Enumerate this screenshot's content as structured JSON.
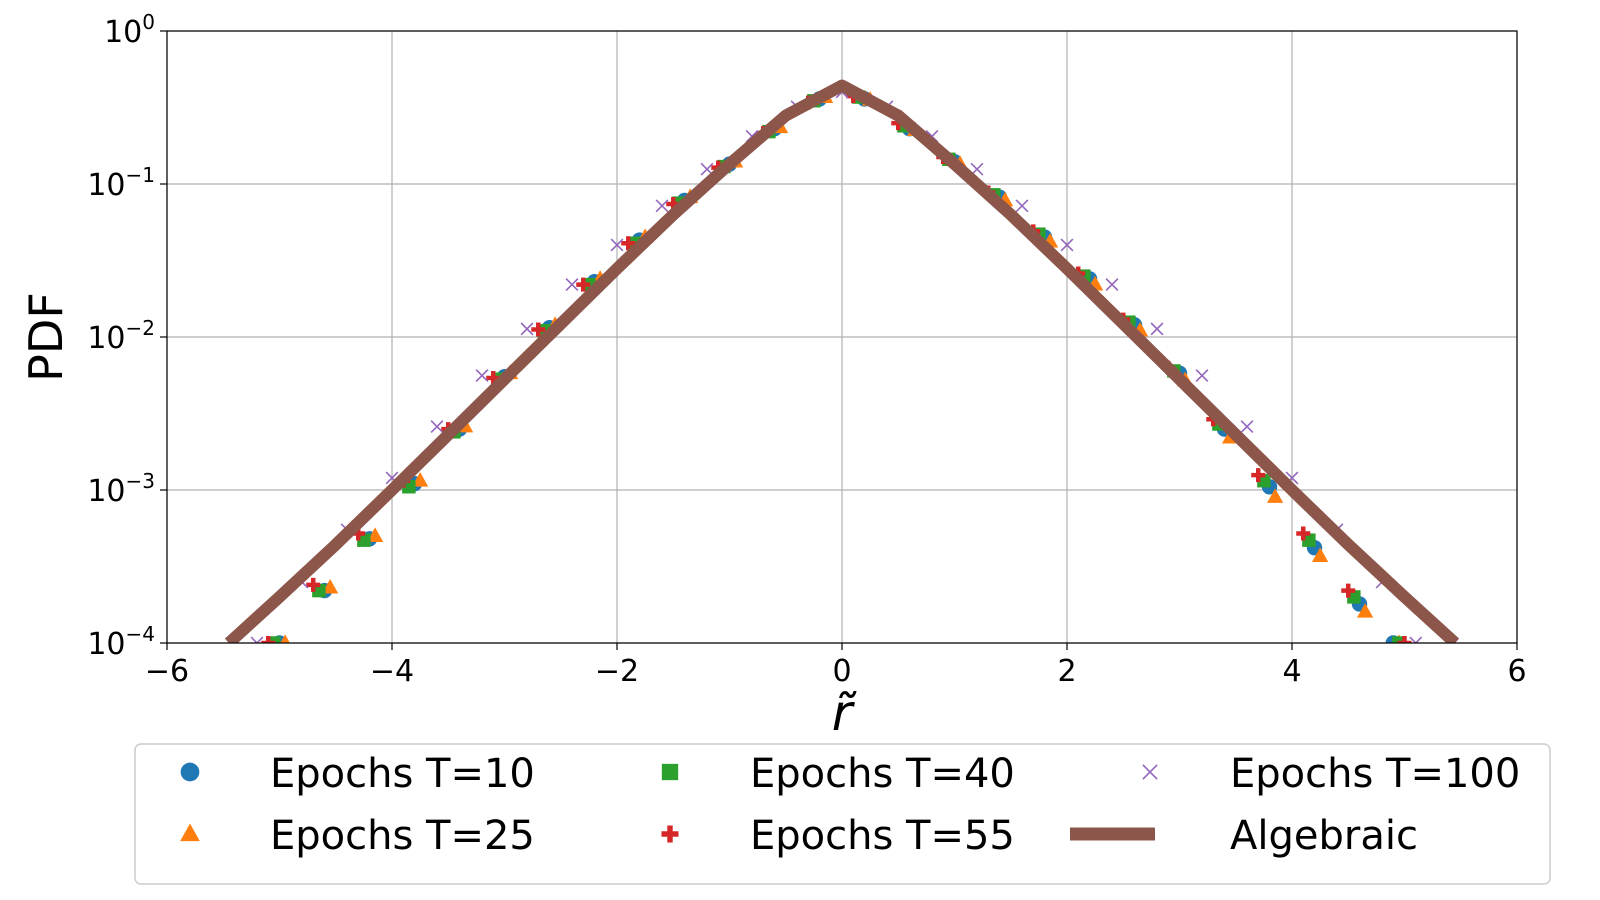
{
  "chart_data": {
    "type": "scatter",
    "xlabel": "r̃",
    "ylabel": "PDF",
    "xlim": [
      -6,
      6
    ],
    "ylim": [
      0.0001,
      1
    ],
    "yscale": "log",
    "grid": true,
    "legend_position": "below plot",
    "legend_columns": 3,
    "x_ticks": [
      {
        "value": -6,
        "label": "−6"
      },
      {
        "value": -4,
        "label": "−4"
      },
      {
        "value": -2,
        "label": "−2"
      },
      {
        "value": 0,
        "label": "0"
      },
      {
        "value": 2,
        "label": "2"
      },
      {
        "value": 4,
        "label": "4"
      },
      {
        "value": 6,
        "label": "6"
      }
    ],
    "y_ticks": [
      {
        "value": 1,
        "base": "10",
        "exp": "0"
      },
      {
        "value": 0.1,
        "base": "10",
        "exp": "−1"
      },
      {
        "value": 0.01,
        "base": "10",
        "exp": "−2"
      },
      {
        "value": 0.001,
        "base": "10",
        "exp": "−3"
      },
      {
        "value": 0.0001,
        "base": "10",
        "exp": "−4"
      }
    ],
    "series": [
      {
        "name": "Epochs T=10",
        "marker": "circle",
        "color": "#1f77b4",
        "points": [
          [
            -5.0,
            0.0001
          ],
          [
            -4.6,
            0.00022
          ],
          [
            -4.2,
            0.00048
          ],
          [
            -3.8,
            0.0011
          ],
          [
            -3.4,
            0.0025
          ],
          [
            -3.0,
            0.0055
          ],
          [
            -2.6,
            0.0115
          ],
          [
            -2.2,
            0.023
          ],
          [
            -1.8,
            0.043
          ],
          [
            -1.4,
            0.078
          ],
          [
            -1.0,
            0.135
          ],
          [
            -0.6,
            0.23
          ],
          [
            -0.2,
            0.36
          ],
          [
            0.2,
            0.36
          ],
          [
            0.6,
            0.23
          ],
          [
            1.0,
            0.14
          ],
          [
            1.4,
            0.082
          ],
          [
            1.8,
            0.045
          ],
          [
            2.2,
            0.024
          ],
          [
            2.6,
            0.012
          ],
          [
            3.0,
            0.0058
          ],
          [
            3.4,
            0.0025
          ],
          [
            3.8,
            0.00105
          ],
          [
            4.2,
            0.00042
          ],
          [
            4.6,
            0.00018
          ],
          [
            4.9,
            0.0001
          ]
        ]
      },
      {
        "name": "Epochs T=25",
        "marker": "triangle",
        "color": "#ff7f0e",
        "points": [
          [
            -4.95,
            0.0001
          ],
          [
            -4.55,
            0.00023
          ],
          [
            -4.15,
            0.0005
          ],
          [
            -3.75,
            0.00115
          ],
          [
            -3.35,
            0.0026
          ],
          [
            -2.95,
            0.0058
          ],
          [
            -2.55,
            0.012
          ],
          [
            -2.15,
            0.024
          ],
          [
            -1.75,
            0.045
          ],
          [
            -1.35,
            0.082
          ],
          [
            -0.95,
            0.14
          ],
          [
            -0.55,
            0.235
          ],
          [
            -0.15,
            0.37
          ],
          [
            0.25,
            0.355
          ],
          [
            0.65,
            0.225
          ],
          [
            1.05,
            0.135
          ],
          [
            1.45,
            0.078
          ],
          [
            1.85,
            0.042
          ],
          [
            2.25,
            0.022
          ],
          [
            2.65,
            0.011
          ],
          [
            3.05,
            0.0052
          ],
          [
            3.45,
            0.0022
          ],
          [
            3.85,
            0.0009
          ],
          [
            4.25,
            0.00037
          ],
          [
            4.65,
            0.00016
          ],
          [
            4.95,
            0.0001
          ]
        ]
      },
      {
        "name": "Epochs T=40",
        "marker": "square",
        "color": "#2ca02c",
        "points": [
          [
            -5.05,
            0.0001
          ],
          [
            -4.65,
            0.00022
          ],
          [
            -4.25,
            0.00047
          ],
          [
            -3.85,
            0.00105
          ],
          [
            -3.45,
            0.0024
          ],
          [
            -3.05,
            0.0053
          ],
          [
            -2.65,
            0.011
          ],
          [
            -2.25,
            0.022
          ],
          [
            -1.85,
            0.041
          ],
          [
            -1.45,
            0.075
          ],
          [
            -1.05,
            0.13
          ],
          [
            -0.65,
            0.22
          ],
          [
            -0.25,
            0.35
          ],
          [
            0.15,
            0.37
          ],
          [
            0.55,
            0.24
          ],
          [
            0.95,
            0.145
          ],
          [
            1.35,
            0.085
          ],
          [
            1.75,
            0.047
          ],
          [
            2.15,
            0.025
          ],
          [
            2.55,
            0.0125
          ],
          [
            2.95,
            0.006
          ],
          [
            3.35,
            0.0027
          ],
          [
            3.75,
            0.00115
          ],
          [
            4.15,
            0.00047
          ],
          [
            4.55,
            0.0002
          ],
          [
            4.95,
            0.0001
          ]
        ]
      },
      {
        "name": "Epochs T=55",
        "marker": "plus",
        "color": "#d62728",
        "points": [
          [
            -5.1,
            0.0001
          ],
          [
            -4.7,
            0.00024
          ],
          [
            -4.3,
            0.00052
          ],
          [
            -3.9,
            0.00115
          ],
          [
            -3.5,
            0.0025
          ],
          [
            -3.1,
            0.0054
          ],
          [
            -2.7,
            0.0112
          ],
          [
            -2.3,
            0.022
          ],
          [
            -1.9,
            0.041
          ],
          [
            -1.5,
            0.074
          ],
          [
            -1.1,
            0.128
          ],
          [
            -0.7,
            0.215
          ],
          [
            -0.3,
            0.34
          ],
          [
            0.1,
            0.375
          ],
          [
            0.5,
            0.25
          ],
          [
            0.9,
            0.15
          ],
          [
            1.3,
            0.088
          ],
          [
            1.7,
            0.049
          ],
          [
            2.1,
            0.026
          ],
          [
            2.5,
            0.013
          ],
          [
            2.9,
            0.0063
          ],
          [
            3.3,
            0.0029
          ],
          [
            3.7,
            0.00125
          ],
          [
            4.1,
            0.00052
          ],
          [
            4.5,
            0.00022
          ],
          [
            5.0,
            0.0001
          ]
        ]
      },
      {
        "name": "Epochs T=100",
        "marker": "x",
        "color": "#9467bd",
        "points": [
          [
            -5.2,
            0.0001
          ],
          [
            -4.8,
            0.00025
          ],
          [
            -4.4,
            0.00055
          ],
          [
            -4.0,
            0.0012
          ],
          [
            -3.6,
            0.0026
          ],
          [
            -3.2,
            0.0056
          ],
          [
            -2.8,
            0.0113
          ],
          [
            -2.4,
            0.022
          ],
          [
            -2.0,
            0.04
          ],
          [
            -1.6,
            0.072
          ],
          [
            -1.2,
            0.125
          ],
          [
            -0.8,
            0.205
          ],
          [
            -0.4,
            0.32
          ],
          [
            0.0,
            0.4
          ],
          [
            0.4,
            0.32
          ],
          [
            0.8,
            0.205
          ],
          [
            1.2,
            0.125
          ],
          [
            1.6,
            0.072
          ],
          [
            2.0,
            0.04
          ],
          [
            2.4,
            0.022
          ],
          [
            2.8,
            0.0113
          ],
          [
            3.2,
            0.0056
          ],
          [
            3.6,
            0.0026
          ],
          [
            4.0,
            0.0012
          ],
          [
            4.4,
            0.00055
          ],
          [
            4.8,
            0.00025
          ],
          [
            5.1,
            0.0001
          ]
        ]
      },
      {
        "name": "Algebraic",
        "marker": "line",
        "color": "#8c564b",
        "points": [
          [
            -5.45,
            0.0001
          ],
          [
            -5.0,
            0.0002
          ],
          [
            -4.5,
            0.00044
          ],
          [
            -4.0,
            0.001
          ],
          [
            -3.5,
            0.0023
          ],
          [
            -3.0,
            0.0053
          ],
          [
            -2.5,
            0.0122
          ],
          [
            -2.0,
            0.028
          ],
          [
            -1.5,
            0.063
          ],
          [
            -1.0,
            0.135
          ],
          [
            -0.5,
            0.28
          ],
          [
            0.0,
            0.44
          ],
          [
            0.5,
            0.28
          ],
          [
            1.0,
            0.135
          ],
          [
            1.5,
            0.063
          ],
          [
            2.0,
            0.028
          ],
          [
            2.5,
            0.0122
          ],
          [
            3.0,
            0.0053
          ],
          [
            3.5,
            0.0023
          ],
          [
            4.0,
            0.001
          ],
          [
            4.5,
            0.00044
          ],
          [
            5.0,
            0.0002
          ],
          [
            5.45,
            0.0001
          ]
        ]
      }
    ]
  }
}
